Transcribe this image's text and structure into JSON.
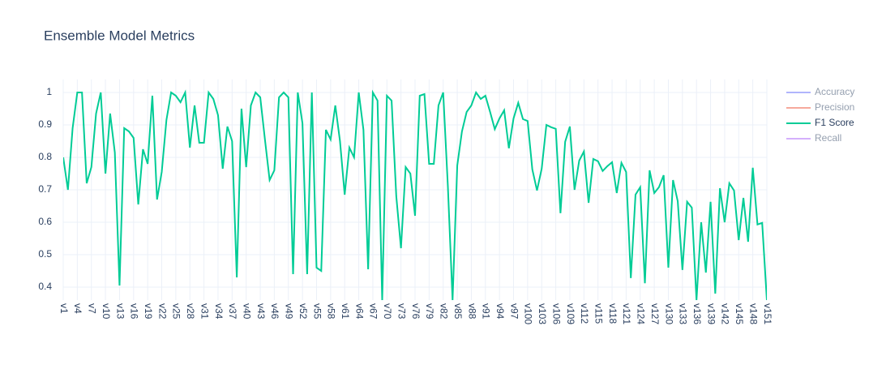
{
  "chart_data": {
    "type": "line",
    "title": "Ensemble Model Metrics",
    "categories": [
      "v1",
      null,
      null,
      "v4",
      null,
      null,
      "v7",
      null,
      null,
      "v10",
      null,
      null,
      "v13",
      null,
      null,
      "v16",
      null,
      null,
      "v19",
      null,
      null,
      "v22",
      null,
      null,
      "v25",
      null,
      null,
      "v28",
      null,
      null,
      "v31",
      null,
      null,
      "v34",
      null,
      null,
      "v37",
      null,
      null,
      "v40",
      null,
      null,
      "v43",
      null,
      null,
      "v46",
      null,
      null,
      "v49",
      null,
      null,
      "v52",
      null,
      null,
      "v55",
      null,
      null,
      "v58",
      null,
      null,
      "v61",
      null,
      null,
      "v64",
      null,
      null,
      "v67",
      null,
      null,
      "v70",
      null,
      null,
      "v73",
      null,
      null,
      "v76",
      null,
      null,
      "v79",
      null,
      null,
      "v82",
      null,
      null,
      "v85",
      null,
      null,
      "v88",
      null,
      null,
      "v91",
      null,
      null,
      "v94",
      null,
      null,
      "v97",
      null,
      null,
      "v100",
      null,
      null,
      "v103",
      null,
      null,
      "v106",
      null,
      null,
      "v109",
      null,
      null,
      "v112",
      null,
      null,
      "v115",
      null,
      null,
      "v118",
      null,
      null,
      "v121",
      null,
      null,
      "v124",
      null,
      null,
      "v127",
      null,
      null,
      "v130",
      null,
      null,
      "v133",
      null,
      null,
      "v136",
      null,
      null,
      "v139",
      null,
      null,
      "v142",
      null,
      null,
      "v145",
      null,
      null,
      "v148",
      null,
      null,
      "v151"
    ],
    "series": [
      {
        "name": "Accuracy",
        "color": "#636efa",
        "visible": "legendonly"
      },
      {
        "name": "Precision",
        "color": "#EF553B",
        "visible": "legendonly"
      },
      {
        "name": "F1 Score",
        "color": "#00cc96",
        "values": [
          0.8,
          0.7,
          0.89,
          1.0,
          1.0,
          0.72,
          0.77,
          0.935,
          1.0,
          0.75,
          0.935,
          0.815,
          0.405,
          0.89,
          0.88,
          0.86,
          0.655,
          0.825,
          0.78,
          0.99,
          0.67,
          0.755,
          0.915,
          1.0,
          0.99,
          0.97,
          1.0,
          0.83,
          0.96,
          0.845,
          0.845,
          1.0,
          0.98,
          0.93,
          0.765,
          0.895,
          0.85,
          0.43,
          0.95,
          0.77,
          0.96,
          1.0,
          0.985,
          0.855,
          0.73,
          0.76,
          0.985,
          1.0,
          0.985,
          0.44,
          1.0,
          0.905,
          0.44,
          1.0,
          0.46,
          0.45,
          0.885,
          0.855,
          0.96,
          0.85,
          0.685,
          0.83,
          0.8,
          1.0,
          0.885,
          0.455,
          1.0,
          0.975,
          0.36,
          0.99,
          0.975,
          0.68,
          0.52,
          0.77,
          0.75,
          0.62,
          0.99,
          0.995,
          0.78,
          0.78,
          0.96,
          1.0,
          0.71,
          0.36,
          0.775,
          0.88,
          0.94,
          0.96,
          1.0,
          0.98,
          0.99,
          0.94,
          0.887,
          0.92,
          0.945,
          0.828,
          0.92,
          0.968,
          0.918,
          0.912,
          0.763,
          0.698,
          0.765,
          0.9,
          0.893,
          0.888,
          0.628,
          0.848,
          0.895,
          0.7,
          0.79,
          0.818,
          0.66,
          0.795,
          0.788,
          0.758,
          0.773,
          0.785,
          0.69,
          0.783,
          0.755,
          0.428,
          0.685,
          0.708,
          0.412,
          0.76,
          0.69,
          0.708,
          0.745,
          0.46,
          0.73,
          0.665,
          0.453,
          0.663,
          0.645,
          0.36,
          0.6,
          0.445,
          0.663,
          0.38,
          0.705,
          0.6,
          0.72,
          0.698,
          0.545,
          0.675,
          0.54,
          0.768,
          0.593,
          0.598,
          0.36
        ]
      },
      {
        "name": "Recall",
        "color": "#ab63fa",
        "visible": "legendonly"
      }
    ],
    "ylim": [
      0.36,
      1.04
    ],
    "yticks": [
      0.4,
      0.5,
      0.6,
      0.7,
      0.8,
      0.9,
      1
    ],
    "grid": true,
    "legend": "right"
  }
}
